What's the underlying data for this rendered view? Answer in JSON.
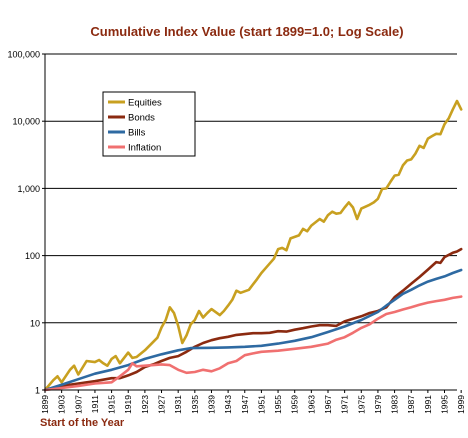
{
  "chart_data": {
    "type": "line",
    "title": "Cumulative Index Value (start 1899=1.0; Log Scale)",
    "xlabel": "Start of the Year",
    "ylabel": "",
    "y_scale": "log",
    "ylim": [
      1,
      100000
    ],
    "xlim": [
      1899,
      1998
    ],
    "y_ticks": [
      1,
      10,
      100,
      1000,
      10000,
      100000
    ],
    "y_tick_labels": [
      "1",
      "10",
      "100",
      "1,000",
      "10,000",
      "100,000"
    ],
    "x_ticks": [
      1899,
      1903,
      1907,
      1911,
      1915,
      1919,
      1923,
      1927,
      1931,
      1935,
      1939,
      1943,
      1947,
      1951,
      1955,
      1959,
      1963,
      1967,
      1971,
      1975,
      1979,
      1983,
      1987,
      1991,
      1995,
      1999
    ],
    "x_tick_labels": [
      "1899",
      "1903",
      "1907",
      "1911",
      "1915",
      "1919",
      "1923",
      "1927",
      "1931",
      "1935",
      "1939",
      "1943",
      "1947",
      "1951",
      "1955",
      "1959",
      "1963",
      "1967",
      "1971",
      "1975",
      "1979",
      "1983",
      "1987",
      "1991",
      "1995",
      "1999"
    ],
    "grid": "horizontal",
    "legend_position": "upper-left",
    "series": [
      {
        "name": "Equities",
        "color": "#C8A020",
        "points": [
          [
            1899,
            1.0
          ],
          [
            1901,
            1.4
          ],
          [
            1902,
            1.6
          ],
          [
            1903,
            1.3
          ],
          [
            1905,
            2.0
          ],
          [
            1906,
            2.3
          ],
          [
            1907,
            1.7
          ],
          [
            1909,
            2.7
          ],
          [
            1911,
            2.6
          ],
          [
            1912,
            2.8
          ],
          [
            1913,
            2.5
          ],
          [
            1914,
            2.3
          ],
          [
            1915,
            2.9
          ],
          [
            1916,
            3.2
          ],
          [
            1917,
            2.5
          ],
          [
            1919,
            3.6
          ],
          [
            1920,
            3.0
          ],
          [
            1921,
            3.1
          ],
          [
            1923,
            3.9
          ],
          [
            1925,
            5.2
          ],
          [
            1926,
            6.0
          ],
          [
            1927,
            8.5
          ],
          [
            1928,
            11.0
          ],
          [
            1929,
            17.0
          ],
          [
            1930,
            14.0
          ],
          [
            1931,
            9.0
          ],
          [
            1932,
            5.0
          ],
          [
            1933,
            6.5
          ],
          [
            1934,
            9.5
          ],
          [
            1935,
            11.0
          ],
          [
            1936,
            15.0
          ],
          [
            1937,
            12.0
          ],
          [
            1938,
            14.0
          ],
          [
            1939,
            16.0
          ],
          [
            1941,
            13.0
          ],
          [
            1942,
            15.0
          ],
          [
            1943,
            18.0
          ],
          [
            1944,
            22.0
          ],
          [
            1945,
            30.0
          ],
          [
            1946,
            28.0
          ],
          [
            1948,
            31.0
          ],
          [
            1950,
            45.0
          ],
          [
            1951,
            55.0
          ],
          [
            1952,
            65.0
          ],
          [
            1954,
            90.0
          ],
          [
            1955,
            125.0
          ],
          [
            1956,
            130.0
          ],
          [
            1957,
            120.0
          ],
          [
            1958,
            180.0
          ],
          [
            1960,
            200.0
          ],
          [
            1961,
            250.0
          ],
          [
            1962,
            230.0
          ],
          [
            1963,
            280.0
          ],
          [
            1965,
            350.0
          ],
          [
            1966,
            320.0
          ],
          [
            1967,
            400.0
          ],
          [
            1968,
            450.0
          ],
          [
            1969,
            420.0
          ],
          [
            1970,
            430.0
          ],
          [
            1971,
            520.0
          ],
          [
            1972,
            620.0
          ],
          [
            1973,
            520.0
          ],
          [
            1974,
            350.0
          ],
          [
            1975,
            500.0
          ],
          [
            1977,
            570.0
          ],
          [
            1978,
            620.0
          ],
          [
            1979,
            700.0
          ],
          [
            1980,
            980.0
          ],
          [
            1981,
            1000.0
          ],
          [
            1982,
            1250.0
          ],
          [
            1983,
            1550.0
          ],
          [
            1984,
            1600.0
          ],
          [
            1985,
            2200.0
          ],
          [
            1986,
            2600.0
          ],
          [
            1987,
            2700.0
          ],
          [
            1988,
            3300.0
          ],
          [
            1989,
            4300.0
          ],
          [
            1990,
            4000.0
          ],
          [
            1991,
            5500.0
          ],
          [
            1992,
            6000.0
          ],
          [
            1993,
            6500.0
          ],
          [
            1994,
            6400.0
          ],
          [
            1995,
            9000.0
          ],
          [
            1996,
            11000.0
          ],
          [
            1997,
            15000.0
          ],
          [
            1998,
            20000.0
          ],
          [
            1999,
            15000.0
          ]
        ]
      },
      {
        "name": "Bonds",
        "color": "#8B2A10",
        "points": [
          [
            1899,
            1.0
          ],
          [
            1903,
            1.15
          ],
          [
            1907,
            1.25
          ],
          [
            1911,
            1.35
          ],
          [
            1915,
            1.5
          ],
          [
            1917,
            1.5
          ],
          [
            1919,
            1.65
          ],
          [
            1921,
            1.85
          ],
          [
            1923,
            2.2
          ],
          [
            1925,
            2.4
          ],
          [
            1927,
            2.7
          ],
          [
            1929,
            3.0
          ],
          [
            1931,
            3.2
          ],
          [
            1933,
            3.7
          ],
          [
            1935,
            4.4
          ],
          [
            1937,
            5.0
          ],
          [
            1939,
            5.5
          ],
          [
            1941,
            5.9
          ],
          [
            1943,
            6.2
          ],
          [
            1945,
            6.6
          ],
          [
            1947,
            6.8
          ],
          [
            1949,
            7.0
          ],
          [
            1951,
            7.0
          ],
          [
            1953,
            7.1
          ],
          [
            1955,
            7.5
          ],
          [
            1957,
            7.4
          ],
          [
            1959,
            7.9
          ],
          [
            1961,
            8.3
          ],
          [
            1963,
            8.8
          ],
          [
            1965,
            9.2
          ],
          [
            1967,
            9.2
          ],
          [
            1969,
            9.0
          ],
          [
            1971,
            10.5
          ],
          [
            1973,
            11.5
          ],
          [
            1975,
            12.5
          ],
          [
            1977,
            14.0
          ],
          [
            1979,
            15.0
          ],
          [
            1981,
            17.0
          ],
          [
            1983,
            24.0
          ],
          [
            1985,
            30.0
          ],
          [
            1987,
            38.0
          ],
          [
            1989,
            48.0
          ],
          [
            1991,
            62.0
          ],
          [
            1993,
            80.0
          ],
          [
            1994,
            78.0
          ],
          [
            1995,
            95.0
          ],
          [
            1997,
            110.0
          ],
          [
            1998,
            115.0
          ],
          [
            1999,
            125.0
          ]
        ]
      },
      {
        "name": "Bills",
        "color": "#2E6AA2",
        "points": [
          [
            1899,
            1.0
          ],
          [
            1903,
            1.2
          ],
          [
            1907,
            1.45
          ],
          [
            1911,
            1.75
          ],
          [
            1915,
            2.0
          ],
          [
            1919,
            2.35
          ],
          [
            1923,
            2.9
          ],
          [
            1927,
            3.4
          ],
          [
            1931,
            3.9
          ],
          [
            1934,
            4.2
          ],
          [
            1939,
            4.25
          ],
          [
            1943,
            4.3
          ],
          [
            1947,
            4.4
          ],
          [
            1951,
            4.55
          ],
          [
            1955,
            4.9
          ],
          [
            1959,
            5.4
          ],
          [
            1963,
            6.1
          ],
          [
            1967,
            7.3
          ],
          [
            1971,
            8.8
          ],
          [
            1975,
            11.0
          ],
          [
            1979,
            14.5
          ],
          [
            1981,
            18.0
          ],
          [
            1983,
            22.0
          ],
          [
            1985,
            27.0
          ],
          [
            1987,
            31.0
          ],
          [
            1989,
            36.0
          ],
          [
            1991,
            41.0
          ],
          [
            1993,
            45.0
          ],
          [
            1995,
            49.0
          ],
          [
            1997,
            55.0
          ],
          [
            1999,
            61.0
          ]
        ]
      },
      {
        "name": "Inflation",
        "color": "#F07070",
        "points": [
          [
            1899,
            1.0
          ],
          [
            1903,
            1.07
          ],
          [
            1907,
            1.15
          ],
          [
            1911,
            1.25
          ],
          [
            1915,
            1.3
          ],
          [
            1917,
            1.6
          ],
          [
            1919,
            2.0
          ],
          [
            1920,
            2.5
          ],
          [
            1921,
            2.25
          ],
          [
            1923,
            2.3
          ],
          [
            1927,
            2.4
          ],
          [
            1929,
            2.35
          ],
          [
            1931,
            2.0
          ],
          [
            1933,
            1.8
          ],
          [
            1935,
            1.85
          ],
          [
            1937,
            2.0
          ],
          [
            1939,
            1.9
          ],
          [
            1941,
            2.1
          ],
          [
            1943,
            2.5
          ],
          [
            1945,
            2.7
          ],
          [
            1947,
            3.3
          ],
          [
            1949,
            3.5
          ],
          [
            1951,
            3.7
          ],
          [
            1955,
            3.85
          ],
          [
            1959,
            4.1
          ],
          [
            1963,
            4.4
          ],
          [
            1967,
            4.9
          ],
          [
            1969,
            5.6
          ],
          [
            1971,
            6.1
          ],
          [
            1973,
            7.1
          ],
          [
            1975,
            8.4
          ],
          [
            1977,
            9.5
          ],
          [
            1979,
            11.5
          ],
          [
            1981,
            13.5
          ],
          [
            1983,
            14.5
          ],
          [
            1985,
            15.8
          ],
          [
            1987,
            17.0
          ],
          [
            1989,
            18.5
          ],
          [
            1991,
            20.0
          ],
          [
            1993,
            21.0
          ],
          [
            1995,
            22.0
          ],
          [
            1997,
            23.5
          ],
          [
            1999,
            24.5
          ]
        ]
      }
    ]
  }
}
